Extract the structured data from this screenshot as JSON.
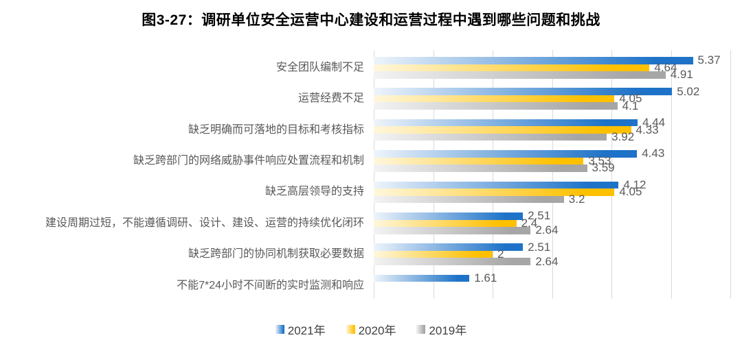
{
  "title": "图3-27：调研单位安全运营中心建设和运营过程中遇到哪些问题和挑战",
  "colors": {
    "title_text": "#000000",
    "category_text": "#595959",
    "value_text": "#595959",
    "gridline": "#d9d9d9",
    "background": "#ffffff"
  },
  "chart_data": {
    "type": "bar",
    "orientation": "horizontal",
    "title": "图3-27：调研单位安全运营中心建设和运营过程中遇到哪些问题和挑战",
    "xlim": [
      0,
      6
    ],
    "gridline_interval": 1,
    "grid": true,
    "value_labels": true,
    "legend_position": "bottom",
    "categories": [
      "安全团队编制不足",
      "运营经费不足",
      "缺乏明确而可落地的目标和考核指标",
      "缺乏跨部门的网络威胁事件响应处置流程和机制",
      "缺乏高层领导的支持",
      "建设周期过短，不能遵循调研、设计、建设、运营的持续优化闭环",
      "缺乏跨部门的协同机制获取必要数据",
      "不能7*24小时不间断的实时监测和响应"
    ],
    "series": [
      {
        "name": "2021年",
        "color": "#1e73c8",
        "color_light": "#eef4fb",
        "values": [
          5.37,
          5.02,
          4.44,
          4.43,
          4.12,
          2.51,
          2.51,
          1.61
        ]
      },
      {
        "name": "2020年",
        "color": "#ffc000",
        "color_light": "#fff7dd",
        "values": [
          4.64,
          4.05,
          4.33,
          3.53,
          4.05,
          2.4,
          2,
          null
        ]
      },
      {
        "name": "2019年",
        "color": "#a6a6a6",
        "color_light": "#f3f3f3",
        "values": [
          4.91,
          4.1,
          3.92,
          3.59,
          3.2,
          2.64,
          2.64,
          null
        ]
      }
    ]
  }
}
